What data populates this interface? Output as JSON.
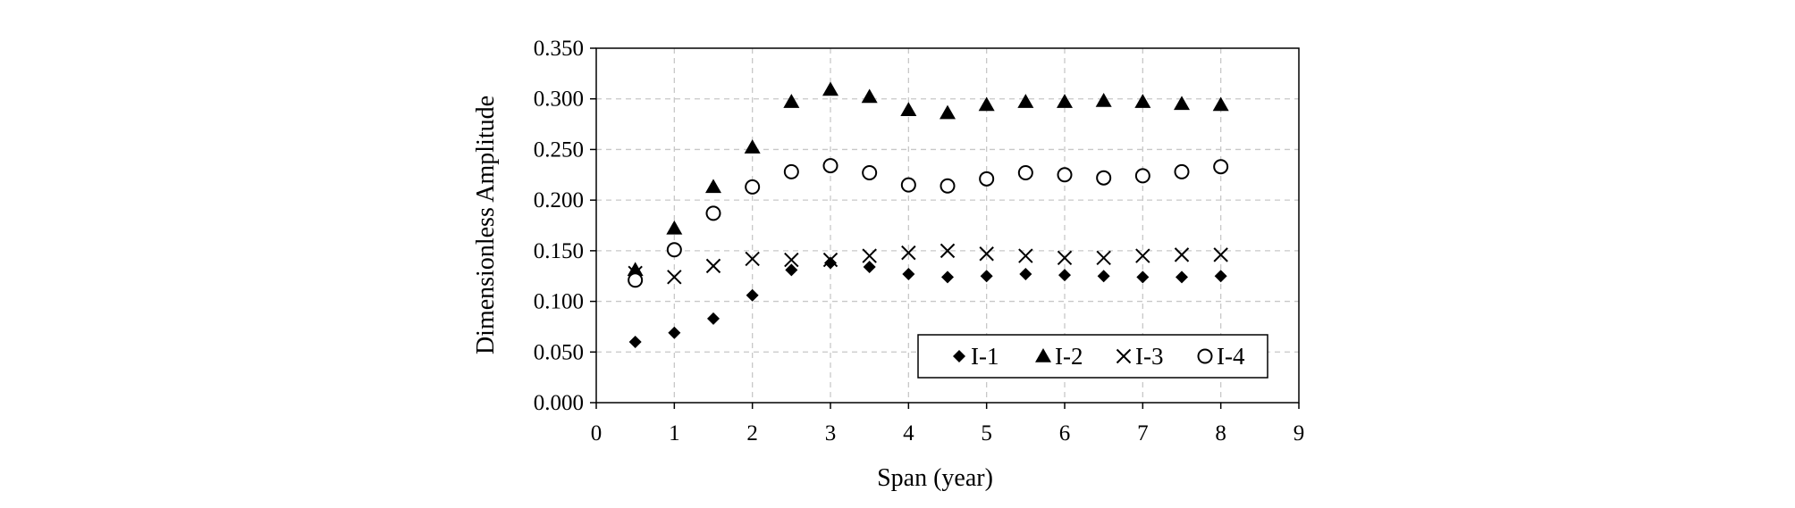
{
  "chart_data": {
    "type": "scatter",
    "title": "",
    "xlabel": "Span  (year)",
    "ylabel": "Dimensionless Amplitude",
    "xlim": [
      0,
      9
    ],
    "ylim": [
      0,
      0.35
    ],
    "x_ticks": [
      "0",
      "1",
      "2",
      "3",
      "4",
      "5",
      "6",
      "7",
      "8",
      "9"
    ],
    "y_ticks": [
      "0.000",
      "0.050",
      "0.100",
      "0.150",
      "0.200",
      "0.250",
      "0.300",
      "0.350"
    ],
    "grid": true,
    "legend_position": "bottom-right",
    "x": [
      0.5,
      1,
      1.5,
      2,
      2.5,
      3,
      3.5,
      4,
      4.5,
      5,
      5.5,
      6,
      6.5,
      7,
      7.5,
      8
    ],
    "series": [
      {
        "name": "I-1",
        "marker": "diamond",
        "values": [
          0.06,
          0.069,
          0.083,
          0.106,
          0.131,
          0.138,
          0.134,
          0.127,
          0.124,
          0.125,
          0.127,
          0.126,
          0.125,
          0.124,
          0.124,
          0.125
        ]
      },
      {
        "name": "I-2",
        "marker": "triangle",
        "values": [
          0.131,
          0.172,
          0.213,
          0.252,
          0.297,
          0.309,
          0.302,
          0.289,
          0.286,
          0.294,
          0.297,
          0.297,
          0.298,
          0.297,
          0.295,
          0.294
        ]
      },
      {
        "name": "I-3",
        "marker": "cross",
        "values": [
          0.128,
          0.124,
          0.135,
          0.142,
          0.141,
          0.141,
          0.145,
          0.148,
          0.15,
          0.147,
          0.145,
          0.143,
          0.143,
          0.145,
          0.146,
          0.146
        ]
      },
      {
        "name": "I-4",
        "marker": "circle",
        "values": [
          0.121,
          0.151,
          0.187,
          0.213,
          0.228,
          0.234,
          0.227,
          0.215,
          0.214,
          0.221,
          0.227,
          0.225,
          0.222,
          0.224,
          0.228,
          0.233
        ]
      }
    ],
    "colors": {
      "marker": "#000000",
      "grid": "#c8c8c8",
      "axis": "#000000",
      "background": "#ffffff"
    }
  }
}
